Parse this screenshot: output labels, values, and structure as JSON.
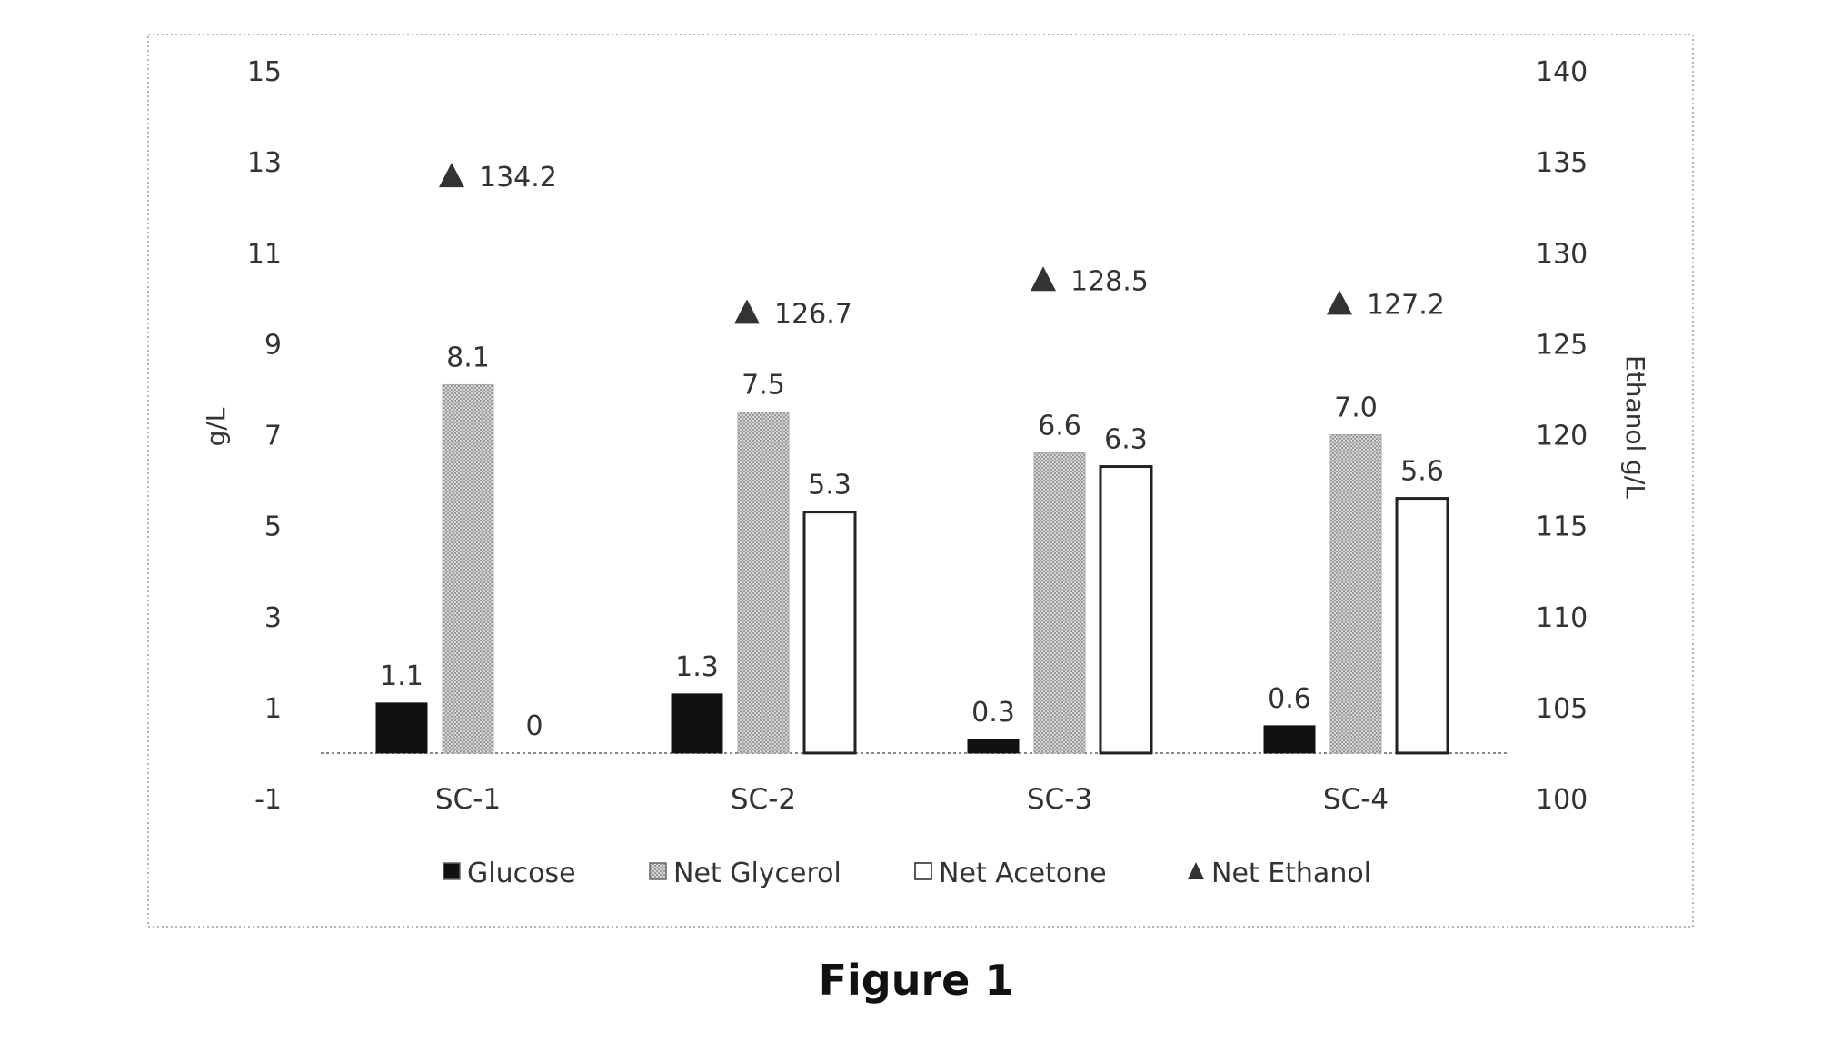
{
  "caption": "Figure 1",
  "chart_data": {
    "type": "bar",
    "categories": [
      "SC-1",
      "SC-2",
      "SC-3",
      "SC-4"
    ],
    "series": [
      {
        "name": "Glucose",
        "axis": "left",
        "values": [
          1.1,
          1.3,
          0.3,
          0.6
        ],
        "labels": [
          "1.1",
          "1.3",
          "0.3",
          "0.6"
        ],
        "color": "#111111",
        "pattern": "solid"
      },
      {
        "name": "Net Glycerol",
        "axis": "left",
        "values": [
          8.1,
          7.5,
          6.6,
          7.0
        ],
        "labels": [
          "8.1",
          "7.5",
          "6.6",
          "7.0"
        ],
        "color": "#bdbdbd",
        "pattern": "dotted"
      },
      {
        "name": "Net Acetone",
        "axis": "left",
        "values": [
          0,
          5.3,
          6.3,
          5.6
        ],
        "labels": [
          "0",
          "5.3",
          "6.3",
          "5.6"
        ],
        "color": "#ffffff",
        "pattern": "outline"
      },
      {
        "name": "Net Ethanol",
        "axis": "right",
        "type": "scatter",
        "marker": "triangle",
        "values": [
          134.2,
          126.7,
          128.5,
          127.2
        ],
        "labels": [
          "134.2",
          "126.7",
          "128.5",
          "127.2"
        ],
        "color": "#333333"
      }
    ],
    "ylabel": "g/L",
    "ylabel_right": "Ethanol g/L",
    "ylim": [
      -1,
      15
    ],
    "yticks": [
      -1,
      1,
      3,
      5,
      7,
      9,
      11,
      13,
      15
    ],
    "ylim_right": [
      100,
      140
    ],
    "yticks_right": [
      100,
      105,
      110,
      115,
      120,
      125,
      130,
      135,
      140
    ],
    "legend_position": "bottom",
    "grid": false
  }
}
